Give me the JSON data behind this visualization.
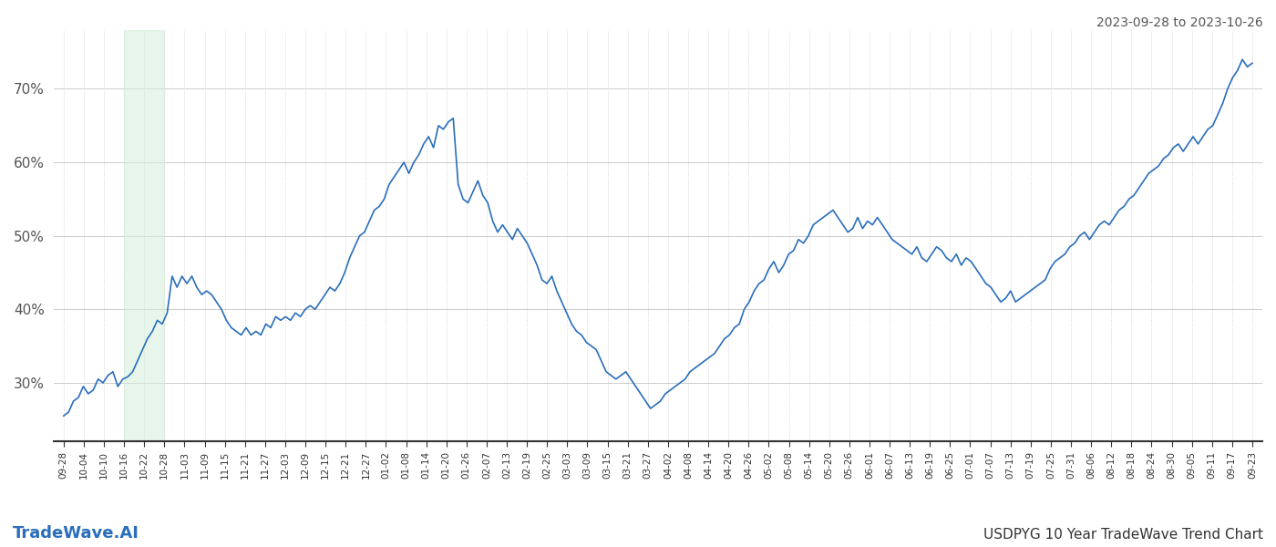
{
  "title_top_right": "2023-09-28 to 2023-10-26",
  "title_bottom_left": "TradeWave.AI",
  "title_bottom_right": "USDPYG 10 Year TradeWave Trend Chart",
  "line_color": "#2a6ebb",
  "line_width": 1.2,
  "shade_color": "#d4edda",
  "shade_alpha": 0.55,
  "shade_xstart": 3,
  "shade_xend": 5,
  "ylim": [
    22,
    78
  ],
  "yticks": [
    30,
    40,
    50,
    60,
    70
  ],
  "ytick_labels": [
    "30%",
    "40%",
    "50%",
    "60%",
    "70%"
  ],
  "background_color": "#ffffff",
  "grid_color": "#cccccc",
  "x_labels": [
    "09-28",
    "10-04",
    "10-10",
    "10-16",
    "10-22",
    "10-28",
    "11-03",
    "11-09",
    "11-15",
    "11-21",
    "11-27",
    "12-03",
    "12-09",
    "12-15",
    "12-21",
    "12-27",
    "01-02",
    "01-08",
    "01-14",
    "01-20",
    "01-26",
    "02-07",
    "02-13",
    "02-19",
    "02-25",
    "03-03",
    "03-09",
    "03-15",
    "03-21",
    "03-27",
    "04-02",
    "04-08",
    "04-14",
    "04-20",
    "04-26",
    "05-02",
    "05-08",
    "05-14",
    "05-20",
    "05-26",
    "06-01",
    "06-07",
    "06-13",
    "06-19",
    "06-25",
    "07-01",
    "07-07",
    "07-13",
    "07-19",
    "07-25",
    "07-31",
    "08-06",
    "08-12",
    "08-18",
    "08-24",
    "08-30",
    "09-05",
    "09-11",
    "09-17",
    "09-23"
  ],
  "values": [
    25.5,
    26.0,
    27.5,
    28.0,
    29.5,
    28.5,
    29.0,
    30.5,
    30.0,
    31.0,
    31.5,
    29.5,
    30.5,
    30.8,
    31.5,
    33.0,
    34.5,
    36.0,
    37.0,
    38.5,
    38.0,
    39.5,
    44.5,
    43.0,
    44.5,
    43.5,
    44.5,
    43.0,
    42.0,
    42.5,
    42.0,
    41.0,
    40.0,
    38.5,
    37.5,
    37.0,
    36.5,
    37.5,
    36.5,
    37.0,
    36.5,
    38.0,
    37.5,
    39.0,
    38.5,
    39.0,
    38.5,
    39.5,
    39.0,
    40.0,
    40.5,
    40.0,
    41.0,
    42.0,
    43.0,
    42.5,
    43.5,
    45.0,
    47.0,
    48.5,
    50.0,
    50.5,
    52.0,
    53.5,
    54.0,
    55.0,
    57.0,
    58.0,
    59.0,
    60.0,
    58.5,
    60.0,
    61.0,
    62.5,
    63.5,
    62.0,
    65.0,
    64.5,
    65.5,
    66.0,
    57.0,
    55.0,
    54.5,
    56.0,
    57.5,
    55.5,
    54.5,
    52.0,
    50.5,
    51.5,
    50.5,
    49.5,
    51.0,
    50.0,
    49.0,
    47.5,
    46.0,
    44.0,
    43.5,
    44.5,
    42.5,
    41.0,
    39.5,
    38.0,
    37.0,
    36.5,
    35.5,
    35.0,
    34.5,
    33.0,
    31.5,
    31.0,
    30.5,
    31.0,
    31.5,
    30.5,
    29.5,
    28.5,
    27.5,
    26.5,
    27.0,
    27.5,
    28.5,
    29.0,
    29.5,
    30.0,
    30.5,
    31.5,
    32.0,
    32.5,
    33.0,
    33.5,
    34.0,
    35.0,
    36.0,
    36.5,
    37.5,
    38.0,
    40.0,
    41.0,
    42.5,
    43.5,
    44.0,
    45.5,
    46.5,
    45.0,
    46.0,
    47.5,
    48.0,
    49.5,
    49.0,
    50.0,
    51.5,
    52.0,
    52.5,
    53.0,
    53.5,
    52.5,
    51.5,
    50.5,
    51.0,
    52.5,
    51.0,
    52.0,
    51.5,
    52.5,
    51.5,
    50.5,
    49.5,
    49.0,
    48.5,
    48.0,
    47.5,
    48.5,
    47.0,
    46.5,
    47.5,
    48.5,
    48.0,
    47.0,
    46.5,
    47.5,
    46.0,
    47.0,
    46.5,
    45.5,
    44.5,
    43.5,
    43.0,
    42.0,
    41.0,
    41.5,
    42.5,
    41.0,
    41.5,
    42.0,
    42.5,
    43.0,
    43.5,
    44.0,
    45.5,
    46.5,
    47.0,
    47.5,
    48.5,
    49.0,
    50.0,
    50.5,
    49.5,
    50.5,
    51.5,
    52.0,
    51.5,
    52.5,
    53.5,
    54.0,
    55.0,
    55.5,
    56.5,
    57.5,
    58.5,
    59.0,
    59.5,
    60.5,
    61.0,
    62.0,
    62.5,
    61.5,
    62.5,
    63.5,
    62.5,
    63.5,
    64.5,
    65.0,
    66.5,
    68.0,
    70.0,
    71.5,
    72.5,
    74.0,
    73.0,
    73.5
  ]
}
